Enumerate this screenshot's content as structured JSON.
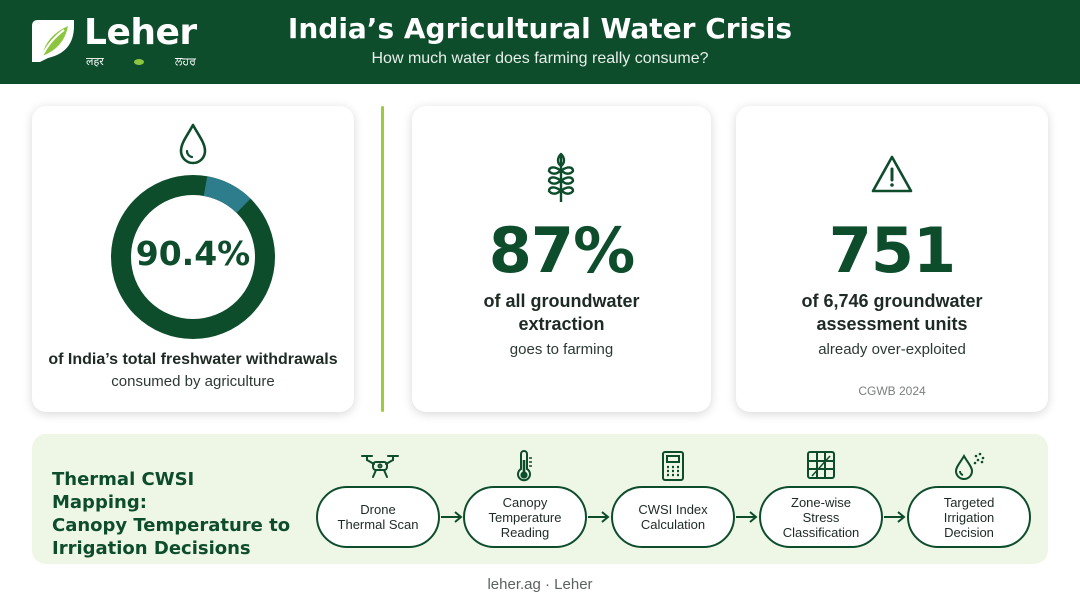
{
  "header": {
    "brand": "Leher",
    "brand_sub_left": "लहर",
    "brand_sub_right": "ਲਹਰ",
    "title": "India’s Agricultural Water Crisis",
    "subtitle": "How much water does farming really consume?"
  },
  "colors": {
    "header_bg": "#0e4d2c",
    "accent_green": "#9ccc3c",
    "donut_main": "#0e4d2c",
    "donut_segment": "#2e7d8c",
    "panel_bg": "#eef6e6"
  },
  "stats": {
    "freshwater": {
      "icon": "water-drop-icon",
      "value": "90.4%",
      "percent": 90.4,
      "line1": "of India’s total freshwater withdrawals",
      "line2": "consumed by agriculture"
    },
    "groundwater": {
      "icon": "wheat-icon",
      "value": "87%",
      "line1": "of all groundwater",
      "line2": "extraction",
      "line3": "goes to farming"
    },
    "overexploited": {
      "icon": "warning-icon",
      "value": "751",
      "line1": "of 6,746 groundwater",
      "line2": "assessment units",
      "line3": "already over-exploited",
      "source": "CGWB 2024"
    }
  },
  "cwsi": {
    "title_line1": "Thermal CWSI Mapping:",
    "title_line2": "Canopy Temperature to",
    "title_line3": "Irrigation Decisions",
    "steps": [
      {
        "icon": "drone-icon",
        "line1": "Drone",
        "line2": "Thermal Scan",
        "line3": ""
      },
      {
        "icon": "thermometer-icon",
        "line1": "Canopy",
        "line2": "Temperature",
        "line3": "Reading"
      },
      {
        "icon": "calculator-icon",
        "line1": "CWSI Index",
        "line2": "Calculation",
        "line3": ""
      },
      {
        "icon": "grid-map-icon",
        "line1": "Zone-wise",
        "line2": "Stress",
        "line3": "Classification"
      },
      {
        "icon": "sprinkler-drop-icon",
        "line1": "Targeted",
        "line2": "Irrigation",
        "line3": "Decision"
      }
    ]
  },
  "footer": {
    "text": "leher.ag · Leher"
  }
}
